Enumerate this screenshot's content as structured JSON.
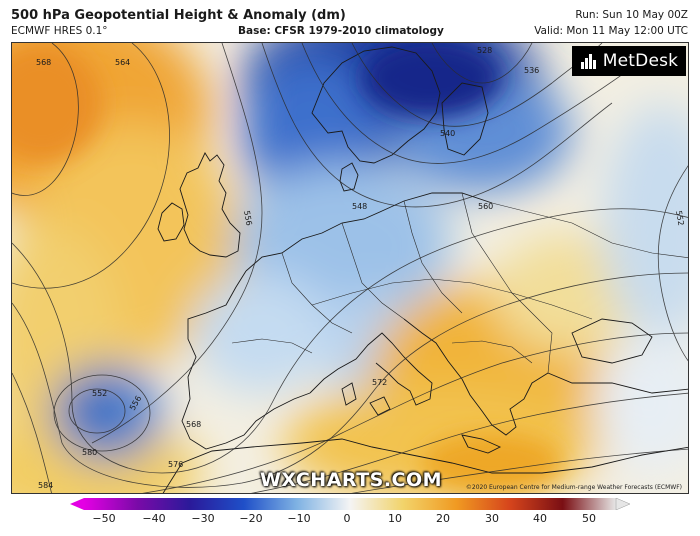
{
  "header": {
    "title": "500 hPa Geopotential Height & Anomaly (dm)",
    "model": "ECMWF HRES 0.1°",
    "base": "Base: CFSR 1979-2010 climatology",
    "run": "Run: Sun 10 May 00Z",
    "valid": "Valid: Mon 11 May 12:00 UTC"
  },
  "logo": {
    "text": "MetDesk"
  },
  "watermark": "WXCHARTS.COM",
  "copyright": "©2020 European Centre for Medium-range Weather Forecasts (ECMWF)",
  "contour_labels": [
    "568",
    "564",
    "556",
    "548",
    "540",
    "536",
    "528",
    "560",
    "552",
    "552",
    "556",
    "568",
    "572",
    "576",
    "580",
    "584"
  ],
  "colorbar": {
    "ticks": [
      "−50",
      "−40",
      "−30",
      "−20",
      "−10",
      "0",
      "10",
      "20",
      "30",
      "40",
      "50"
    ],
    "colors": {
      "m50": "#e400e4",
      "m40": "#7a0aa8",
      "m30": "#2a1a9a",
      "m20": "#1f4fc8",
      "m10": "#7fb2e3",
      "zero": "#f4f4f4",
      "p10": "#f2d36a",
      "p20": "#f09a22",
      "p30": "#d6451c",
      "p40": "#7a0f14",
      "p50": "#e6e6e6"
    }
  }
}
